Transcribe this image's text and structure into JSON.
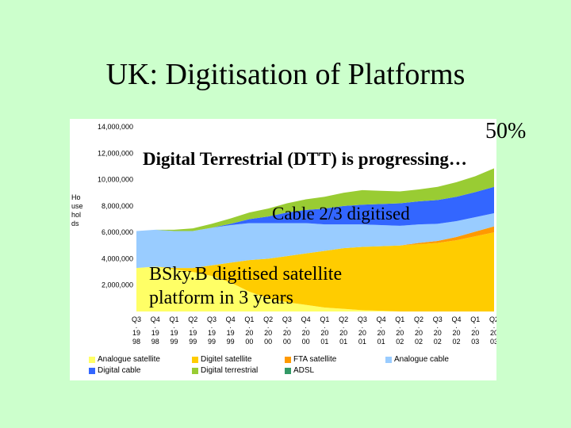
{
  "slide": {
    "title": "UK: Digitisation of Platforms"
  },
  "annotations": {
    "pct": "50%",
    "dtt": "Digital Terrestrial (DTT) is progressing…",
    "cable": "Cable 2/3 digitised",
    "bskyb_line1": "BSky.B digitised satellite",
    "bskyb_line2": "platform in 3 years"
  },
  "chart_data": {
    "type": "area",
    "stacked": true,
    "ylabel": "Households",
    "ylim": [
      0,
      14000000
    ],
    "yticks": [
      "2,000,000",
      "4,000,000",
      "6,000,000",
      "8,000,000",
      "10,000,000",
      "12,000,000",
      "14,000,000"
    ],
    "ytick_values": [
      2000000,
      4000000,
      6000000,
      8000000,
      10000000,
      12000000,
      14000000
    ],
    "x": [
      "Q3 1998",
      "Q4 1998",
      "Q1 1999",
      "Q2 1999",
      "Q3 1999",
      "Q4 1999",
      "Q1 2000",
      "Q2 2000",
      "Q3 2000",
      "Q4 2000",
      "Q1 2001",
      "Q2 2001",
      "Q3 2001",
      "Q4 2001",
      "Q1 2002",
      "Q2 2002",
      "Q3 2002",
      "Q4 2002",
      "Q1 2003",
      "Q2 2003"
    ],
    "x_quarters": [
      "Q3",
      "Q4",
      "Q1",
      "Q2",
      "Q3",
      "Q4",
      "Q1",
      "Q2",
      "Q3",
      "Q4",
      "Q1",
      "Q2",
      "Q3",
      "Q4",
      "Q1",
      "Q2",
      "Q3",
      "Q4",
      "Q1",
      "Q2"
    ],
    "x_century": [
      "19",
      "19",
      "19",
      "19",
      "19",
      "19",
      "20",
      "20",
      "20",
      "20",
      "20",
      "20",
      "20",
      "20",
      "20",
      "20",
      "20",
      "20",
      "20",
      "20"
    ],
    "x_year2": [
      "98",
      "98",
      "99",
      "99",
      "99",
      "99",
      "00",
      "00",
      "00",
      "00",
      "01",
      "01",
      "01",
      "01",
      "02",
      "02",
      "02",
      "02",
      "03",
      "03"
    ],
    "series": [
      {
        "name": "Analogue satellite",
        "color": "#ffff66",
        "values": [
          3300000,
          3400000,
          3200000,
          3000000,
          2700000,
          2200000,
          1500000,
          1000000,
          700000,
          500000,
          300000,
          200000,
          100000,
          50000,
          0,
          0,
          0,
          0,
          0,
          0
        ]
      },
      {
        "name": "Digitel satellite",
        "color": "#ffcc00",
        "values": [
          0,
          0,
          100000,
          300000,
          800000,
          1500000,
          2400000,
          3000000,
          3500000,
          3900000,
          4300000,
          4600000,
          4800000,
          4900000,
          5000000,
          5100000,
          5200000,
          5400000,
          5700000,
          6000000
        ]
      },
      {
        "name": "FTA satellite",
        "color": "#ff9900",
        "values": [
          0,
          0,
          0,
          0,
          0,
          0,
          0,
          0,
          0,
          0,
          0,
          0,
          0,
          0,
          0,
          100000,
          150000,
          250000,
          350000,
          450000
        ]
      },
      {
        "name": "Analogue cable",
        "color": "#99ccff",
        "values": [
          2800000,
          2800000,
          2800000,
          2800000,
          2850000,
          2850000,
          2800000,
          2700000,
          2500000,
          2300000,
          2000000,
          1800000,
          1700000,
          1600000,
          1500000,
          1400000,
          1300000,
          1200000,
          1100000,
          1000000
        ]
      },
      {
        "name": "Digital cable",
        "color": "#3366ff",
        "values": [
          0,
          0,
          0,
          0,
          0,
          100000,
          300000,
          500000,
          800000,
          1000000,
          1200000,
          1400000,
          1500000,
          1600000,
          1700000,
          1750000,
          1800000,
          1850000,
          1900000,
          2000000
        ]
      },
      {
        "name": "Digital terrestrial",
        "color": "#99cc33",
        "values": [
          0,
          0,
          100000,
          200000,
          300000,
          400000,
          500000,
          600000,
          700000,
          800000,
          900000,
          1000000,
          1100000,
          1000000,
          900000,
          900000,
          1000000,
          1100000,
          1200000,
          1400000
        ]
      },
      {
        "name": "ADSL",
        "color": "#339966",
        "values": [
          0,
          0,
          0,
          0,
          0,
          0,
          0,
          0,
          0,
          0,
          0,
          0,
          0,
          0,
          0,
          0,
          0,
          0,
          0,
          0
        ]
      }
    ]
  }
}
